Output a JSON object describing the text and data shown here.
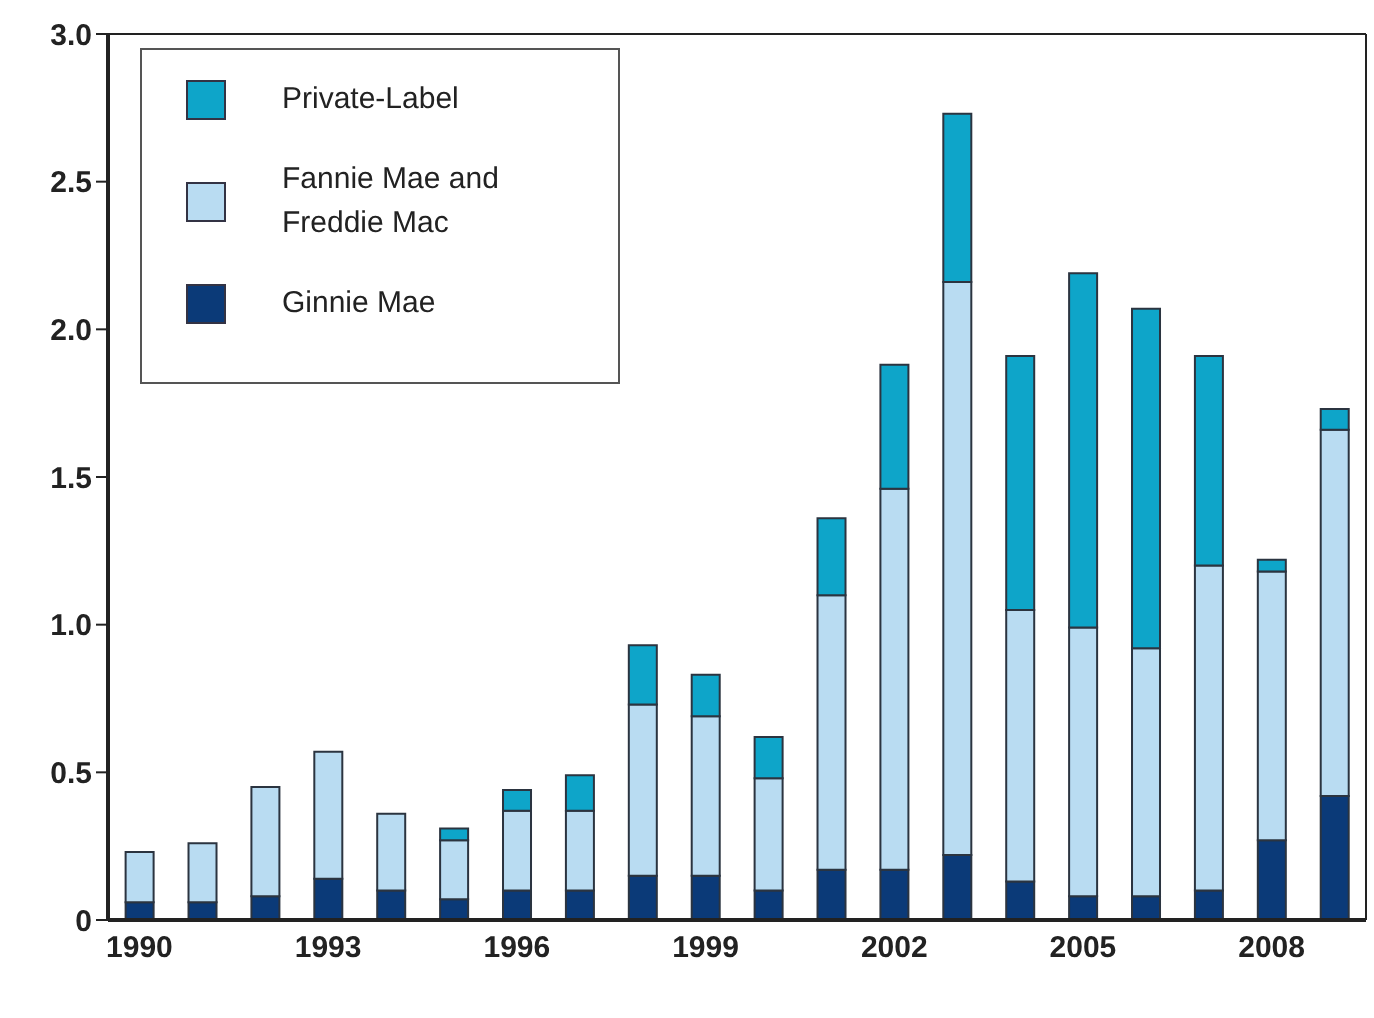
{
  "chart_data": {
    "type": "bar",
    "stacked": true,
    "legend": "top left",
    "categories": [
      "1990",
      null,
      null,
      "1993",
      null,
      null,
      "1996",
      null,
      null,
      "1999",
      null,
      null,
      "2002",
      null,
      null,
      "2005",
      null,
      null,
      "2008",
      null
    ],
    "series": [
      {
        "name": "Ginnie Mae",
        "color": "#0b3a78",
        "values": [
          0.06,
          0.06,
          0.08,
          0.14,
          0.1,
          0.07,
          0.1,
          0.1,
          0.15,
          0.15,
          0.1,
          0.17,
          0.17,
          0.22,
          0.13,
          0.08,
          0.08,
          0.1,
          0.27,
          0.42
        ]
      },
      {
        "name": "Fannie Mae and Freddie Mac",
        "color": "#b9dcf2",
        "values": [
          0.17,
          0.2,
          0.37,
          0.43,
          0.26,
          0.2,
          0.27,
          0.27,
          0.58,
          0.54,
          0.38,
          0.93,
          1.29,
          1.94,
          0.92,
          0.91,
          0.84,
          1.1,
          0.91,
          1.24
        ]
      },
      {
        "name": "Private-Label",
        "color": "#0ea5c9",
        "values": [
          null,
          null,
          null,
          null,
          null,
          0.04,
          0.07,
          0.12,
          0.2,
          0.14,
          0.14,
          0.26,
          0.42,
          0.57,
          0.86,
          1.2,
          1.15,
          0.71,
          0.04,
          0.07
        ]
      }
    ],
    "ylim": [
      0,
      3
    ],
    "yticks": [
      0,
      {
        "value": 0.5,
        "label": "0.5"
      },
      {
        "value": 1,
        "label": "1.0"
      },
      {
        "value": 1.5,
        "label": "1.5"
      },
      {
        "value": 2,
        "label": "2.0"
      },
      {
        "value": 2.5,
        "label": "2.5"
      },
      {
        "value": 3,
        "label": "3.0"
      }
    ]
  }
}
